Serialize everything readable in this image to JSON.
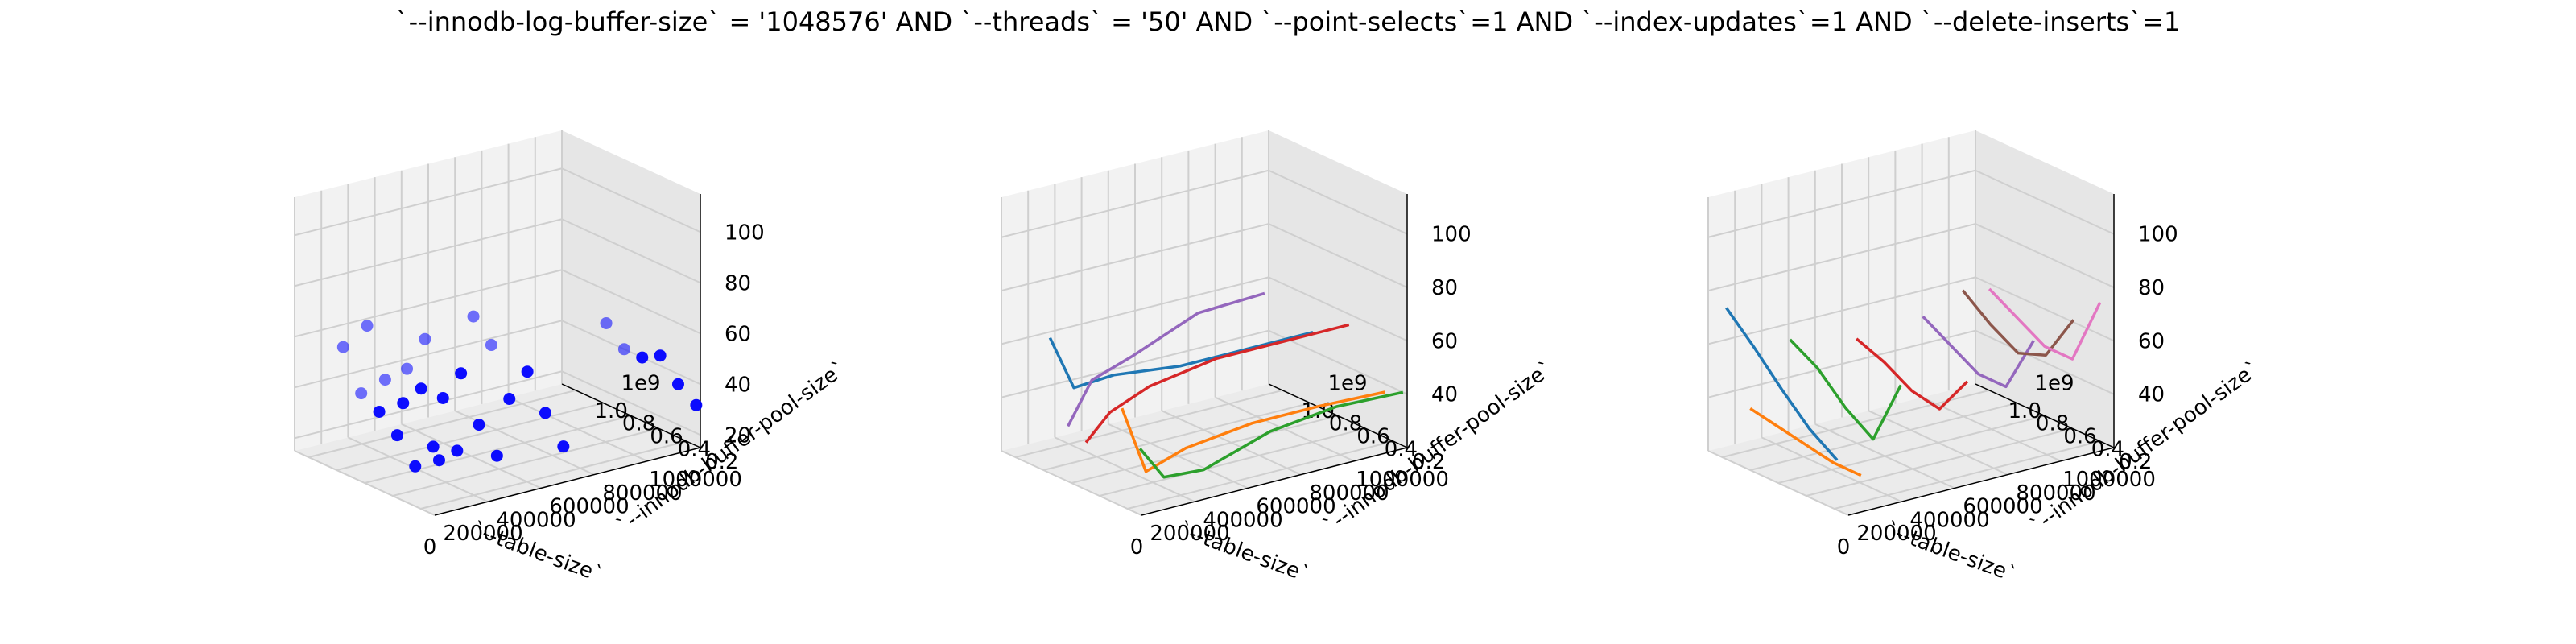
{
  "figure": {
    "title": "`--innodb-log-buffer-size` = '1048576' AND `--threads` = '50'  AND `--point-selects`=1 AND `--index-updates`=1 AND `--delete-inserts`=1"
  },
  "chart_data": [
    {
      "type": "scatter",
      "xlabel": "`--table-size`",
      "ylabel": "`--innodb-buffer-pool-size`",
      "zlabel": "",
      "x_ticks": [
        "0",
        "200000",
        "400000",
        "600000",
        "800000",
        "1000000"
      ],
      "y_ticks": [
        "0.2",
        "0.4",
        "0.6",
        "0.8",
        "1.0"
      ],
      "y_tick_suffix": "1e9",
      "z_ticks": [
        "20",
        "40",
        "60",
        "80",
        "100"
      ],
      "xlim": [
        0,
        1000000
      ],
      "ylim": [
        0.1,
        1.1
      ],
      "zlim": [
        15,
        115
      ],
      "grid": true,
      "color": "#0000ff",
      "points": [
        {
          "x": 10000,
          "y": 0.13,
          "z": 41
        },
        {
          "x": 10000,
          "y": 0.26,
          "z": 30
        },
        {
          "x": 10000,
          "y": 0.39,
          "z": 39
        },
        {
          "x": 10000,
          "y": 0.52,
          "z": 45
        },
        {
          "x": 10000,
          "y": 0.65,
          "z": 49
        },
        {
          "x": 10000,
          "y": 0.78,
          "z": 64
        },
        {
          "x": 100000,
          "y": 0.13,
          "z": 37
        },
        {
          "x": 100000,
          "y": 0.26,
          "z": 30
        },
        {
          "x": 100000,
          "y": 0.39,
          "z": 55
        },
        {
          "x": 100000,
          "y": 0.52,
          "z": 46
        },
        {
          "x": 100000,
          "y": 0.65,
          "z": 52
        },
        {
          "x": 100000,
          "y": 0.78,
          "z": 70
        },
        {
          "x": 250000,
          "y": 0.13,
          "z": 31
        },
        {
          "x": 250000,
          "y": 0.26,
          "z": 40
        },
        {
          "x": 250000,
          "y": 0.39,
          "z": 57
        },
        {
          "x": 250000,
          "y": 0.52,
          "z": 44
        },
        {
          "x": 250000,
          "y": 0.65,
          "z": 64
        },
        {
          "x": 250000,
          "y": 0.78,
          "z": 49
        },
        {
          "x": 500000,
          "y": 0.13,
          "z": 28
        },
        {
          "x": 500000,
          "y": 0.26,
          "z": 38
        },
        {
          "x": 500000,
          "y": 0.39,
          "z": 51
        },
        {
          "x": 500000,
          "y": 0.52,
          "z": 37
        },
        {
          "x": 500000,
          "y": 0.65,
          "z": 55
        },
        {
          "x": 500000,
          "y": 0.78,
          "z": 63
        },
        {
          "x": 1000000,
          "y": 0.13,
          "z": 31
        },
        {
          "x": 1000000,
          "y": 0.26,
          "z": 36
        },
        {
          "x": 1000000,
          "y": 0.39,
          "z": 44
        },
        {
          "x": 1000000,
          "y": 0.52,
          "z": 40
        },
        {
          "x": 1000000,
          "y": 0.65,
          "z": 40
        },
        {
          "x": 1000000,
          "y": 0.78,
          "z": 47
        }
      ]
    },
    {
      "type": "line",
      "xlabel": "`--table-size`",
      "ylabel": "`--innodb-buffer-pool-size`",
      "zlabel": "",
      "x_ticks": [
        "0",
        "200000",
        "400000",
        "600000",
        "800000",
        "1000000"
      ],
      "y_ticks": [
        "0.2",
        "0.4",
        "0.6",
        "0.8",
        "1.0"
      ],
      "y_tick_suffix": "1e9",
      "z_ticks": [
        "40",
        "60",
        "80",
        "100"
      ],
      "xlim": [
        0,
        1000000
      ],
      "ylim": [
        0.1,
        1.1
      ],
      "zlim": [
        20,
        115
      ],
      "grid": true,
      "series": [
        {
          "color": "#1f77b4",
          "points": [
            {
              "x": 10000,
              "y": 0.78,
              "z": 70
            },
            {
              "x": 100000,
              "y": 0.78,
              "z": 49
            },
            {
              "x": 250000,
              "y": 0.78,
              "z": 50
            },
            {
              "x": 500000,
              "y": 0.78,
              "z": 47
            },
            {
              "x": 750000,
              "y": 0.78,
              "z": 47
            },
            {
              "x": 1000000,
              "y": 0.78,
              "z": 47
            }
          ]
        },
        {
          "color": "#ff7f0e",
          "points": [
            {
              "x": 10000,
              "y": 0.26,
              "z": 56
            },
            {
              "x": 100000,
              "y": 0.26,
              "z": 30
            },
            {
              "x": 250000,
              "y": 0.26,
              "z": 35
            },
            {
              "x": 500000,
              "y": 0.26,
              "z": 38
            },
            {
              "x": 750000,
              "y": 0.26,
              "z": 38
            },
            {
              "x": 1000000,
              "y": 0.26,
              "z": 37
            }
          ]
        },
        {
          "color": "#2ca02c",
          "points": [
            {
              "x": 10000,
              "y": 0.13,
              "z": 44
            },
            {
              "x": 100000,
              "y": 0.13,
              "z": 31
            },
            {
              "x": 250000,
              "y": 0.13,
              "z": 30
            },
            {
              "x": 500000,
              "y": 0.13,
              "z": 38
            },
            {
              "x": 750000,
              "y": 0.13,
              "z": 41
            },
            {
              "x": 1000000,
              "y": 0.13,
              "z": 40
            }
          ]
        },
        {
          "color": "#d62728",
          "points": [
            {
              "x": 10000,
              "y": 0.52,
              "z": 37
            },
            {
              "x": 100000,
              "y": 0.52,
              "z": 46
            },
            {
              "x": 250000,
              "y": 0.52,
              "z": 52
            },
            {
              "x": 500000,
              "y": 0.52,
              "z": 56
            },
            {
              "x": 750000,
              "y": 0.52,
              "z": 56
            },
            {
              "x": 1000000,
              "y": 0.52,
              "z": 56
            }
          ]
        },
        {
          "color": "#9467bd",
          "points": [
            {
              "x": 10000,
              "y": 0.65,
              "z": 40
            },
            {
              "x": 100000,
              "y": 0.65,
              "z": 55
            },
            {
              "x": 250000,
              "y": 0.65,
              "z": 60
            },
            {
              "x": 500000,
              "y": 0.65,
              "z": 70
            },
            {
              "x": 750000,
              "y": 0.65,
              "z": 71
            }
          ]
        }
      ]
    },
    {
      "type": "line",
      "xlabel": "`--table-size`",
      "ylabel": "`--innodb-buffer-pool-size`",
      "zlabel": "",
      "x_ticks": [
        "0",
        "200000",
        "400000",
        "600000",
        "800000",
        "1000000"
      ],
      "y_ticks": [
        "0.2",
        "0.4",
        "0.6",
        "0.8",
        "1.0"
      ],
      "y_tick_suffix": "1e9",
      "z_ticks": [
        "40",
        "60",
        "80",
        "100"
      ],
      "xlim": [
        0,
        1000000
      ],
      "ylim": [
        0.1,
        1.1
      ],
      "zlim": [
        20,
        115
      ],
      "grid": true,
      "series": [
        {
          "color": "#1f77b4",
          "points": [
            {
              "x": 10000,
              "y": 0.2,
              "z": 38
            },
            {
              "x": 10000,
              "y": 0.4,
              "z": 45
            },
            {
              "x": 10000,
              "y": 0.6,
              "z": 55
            },
            {
              "x": 10000,
              "y": 0.8,
              "z": 66
            },
            {
              "x": 10000,
              "y": 1.0,
              "z": 76
            }
          ]
        },
        {
          "color": "#ff7f0e",
          "points": [
            {
              "x": 100000,
              "y": 0.2,
              "z": 30
            },
            {
              "x": 100000,
              "y": 0.4,
              "z": 30
            },
            {
              "x": 100000,
              "y": 0.6,
              "z": 32
            },
            {
              "x": 100000,
              "y": 0.8,
              "z": 34
            },
            {
              "x": 100000,
              "y": 1.0,
              "z": 36
            }
          ]
        },
        {
          "color": "#2ca02c",
          "points": [
            {
              "x": 250000,
              "y": 0.2,
              "z": 60
            },
            {
              "x": 250000,
              "y": 0.4,
              "z": 35
            },
            {
              "x": 250000,
              "y": 0.6,
              "z": 42
            },
            {
              "x": 250000,
              "y": 0.8,
              "z": 52
            },
            {
              "x": 250000,
              "y": 1.0,
              "z": 58
            }
          ]
        },
        {
          "color": "#d62728",
          "points": [
            {
              "x": 500000,
              "y": 0.2,
              "z": 55
            },
            {
              "x": 500000,
              "y": 0.4,
              "z": 40
            },
            {
              "x": 500000,
              "y": 0.6,
              "z": 42
            },
            {
              "x": 500000,
              "y": 0.8,
              "z": 48
            },
            {
              "x": 500000,
              "y": 1.0,
              "z": 52
            }
          ]
        },
        {
          "color": "#9467bd",
          "points": [
            {
              "x": 750000,
              "y": 0.2,
              "z": 64
            },
            {
              "x": 750000,
              "y": 0.4,
              "z": 42
            },
            {
              "x": 750000,
              "y": 0.6,
              "z": 42
            },
            {
              "x": 750000,
              "y": 0.8,
              "z": 48
            },
            {
              "x": 750000,
              "y": 1.0,
              "z": 54
            }
          ]
        },
        {
          "color": "#8c564b",
          "points": [
            {
              "x": 900000,
              "y": 0.2,
              "z": 68
            },
            {
              "x": 900000,
              "y": 0.4,
              "z": 50
            },
            {
              "x": 900000,
              "y": 0.6,
              "z": 46
            },
            {
              "x": 900000,
              "y": 0.8,
              "z": 52
            },
            {
              "x": 900000,
              "y": 1.0,
              "z": 60
            }
          ]
        },
        {
          "color": "#e377c2",
          "points": [
            {
              "x": 1000000,
              "y": 0.2,
              "z": 72
            },
            {
              "x": 1000000,
              "y": 0.4,
              "z": 46
            },
            {
              "x": 1000000,
              "y": 0.6,
              "z": 46
            },
            {
              "x": 1000000,
              "y": 0.8,
              "z": 52
            },
            {
              "x": 1000000,
              "y": 1.0,
              "z": 58
            }
          ]
        }
      ]
    }
  ]
}
